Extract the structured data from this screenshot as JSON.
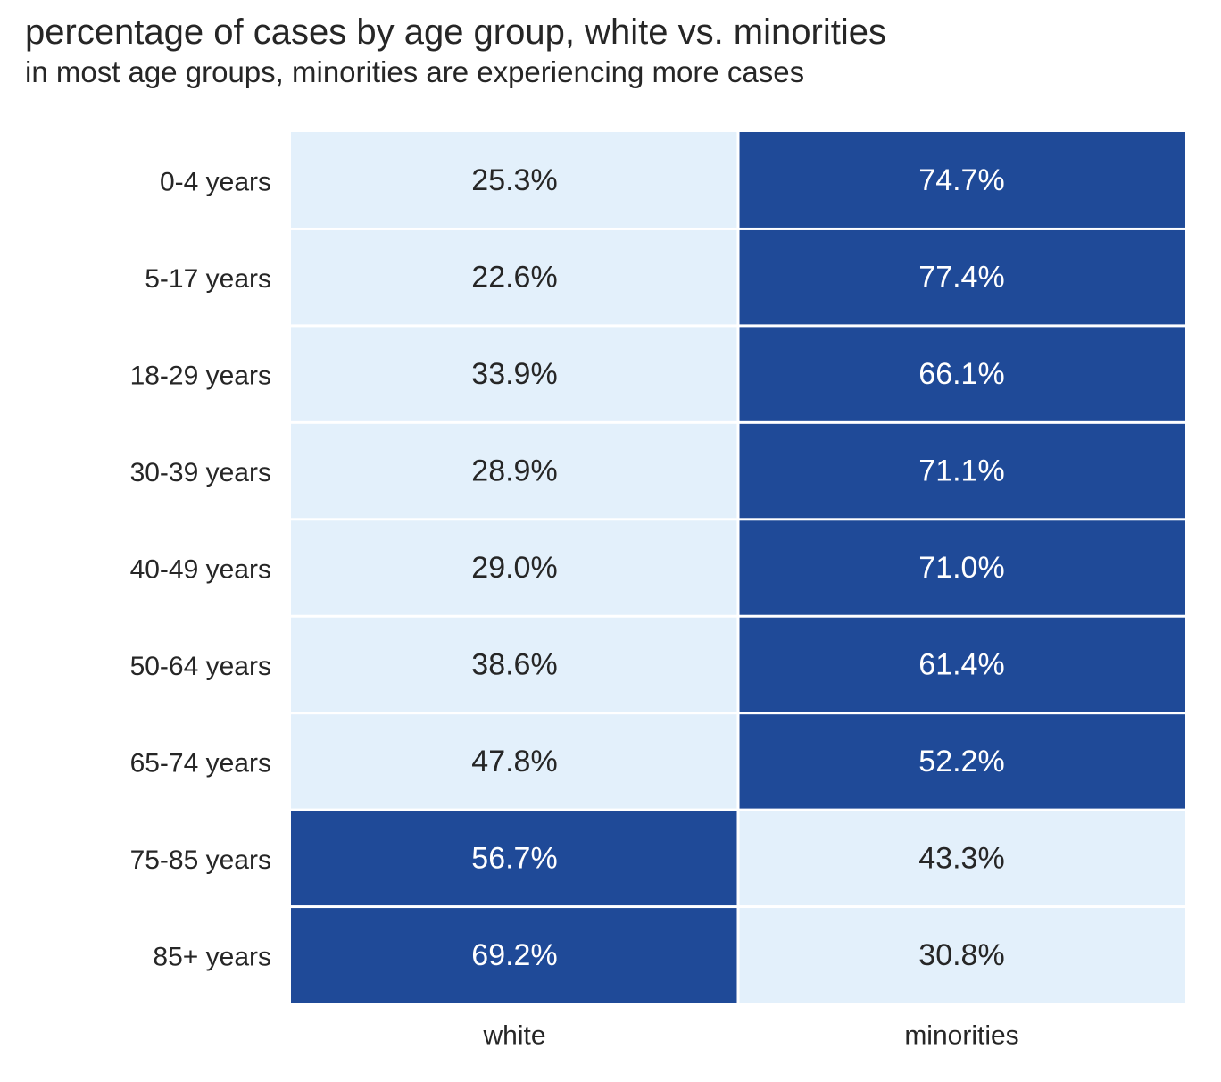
{
  "title": "percentage of cases by age group, white vs. minorities",
  "subtitle": "in most age groups, minorities are experiencing more cases",
  "chart_data": {
    "type": "heatmap",
    "title": "percentage of cases by age group, white vs. minorities",
    "subtitle": "in most age groups, minorities are experiencing more cases",
    "rows": [
      "0-4 years",
      "5-17 years",
      "18-29 years",
      "30-39 years",
      "40-49 years",
      "50-64 years",
      "65-74 years",
      "75-85 years",
      "85+ years"
    ],
    "columns": [
      "white",
      "minorities"
    ],
    "values": [
      [
        25.3,
        74.7
      ],
      [
        22.6,
        77.4
      ],
      [
        33.9,
        66.1
      ],
      [
        28.9,
        71.1
      ],
      [
        29.0,
        71.0
      ],
      [
        38.6,
        61.4
      ],
      [
        47.8,
        52.2
      ],
      [
        56.7,
        43.3
      ],
      [
        69.2,
        30.8
      ]
    ],
    "labels": [
      [
        "25.3%",
        "74.7%"
      ],
      [
        "22.6%",
        "77.4%"
      ],
      [
        "33.9%",
        "66.1%"
      ],
      [
        "28.9%",
        "71.1%"
      ],
      [
        "29.0%",
        "71.0%"
      ],
      [
        "38.6%",
        "61.4%"
      ],
      [
        "47.8%",
        "52.2%"
      ],
      [
        "56.7%",
        "43.3%"
      ],
      [
        "69.2%",
        "30.8%"
      ]
    ],
    "colors": {
      "high": "#1f4a98",
      "low": "#e3f0fb",
      "text_on_high": "#ffffff",
      "text_on_low": "#262626",
      "gridline": "#ffffff"
    },
    "threshold": 50,
    "colorbar": false
  }
}
